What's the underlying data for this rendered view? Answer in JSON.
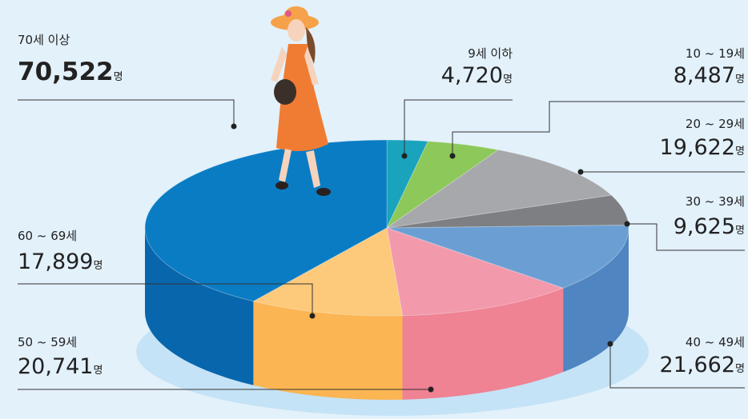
{
  "chart_data": {
    "type": "pie3d",
    "categories": [
      "9세 이하",
      "10 ~ 19세",
      "20 ~ 29세",
      "30 ~ 39세",
      "40 ~ 49세",
      "50 ~ 59세",
      "60 ~ 69세",
      "70세 이상"
    ],
    "values": [
      4720,
      8487,
      19622,
      9625,
      21662,
      20741,
      17899,
      70522
    ],
    "value_labels": [
      "4,720",
      "8,487",
      "19,622",
      "9,625",
      "21,662",
      "20,741",
      "17,899",
      "70,522"
    ],
    "unit": "명",
    "colors": [
      "#1aa3bd",
      "#8dc85a",
      "#a7a8ab",
      "#7d7f82",
      "#6b9fd4",
      "#f29aac",
      "#fdc97a",
      "#0a7cc4"
    ],
    "side_colors": [
      "#128aa0",
      "#76ad47",
      "#8e8f92",
      "#66686b",
      "#4f85c0",
      "#ef8293",
      "#fbb552",
      "#0866ac"
    ]
  }
}
